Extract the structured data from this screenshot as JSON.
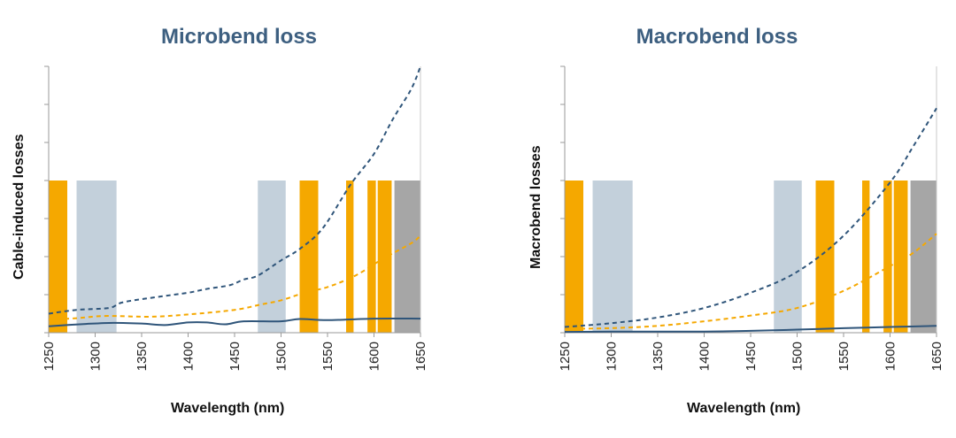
{
  "chart_data": [
    {
      "type": "line",
      "title": "Microbend loss",
      "xlabel": "Wavelength (nm)",
      "ylabel": "Cable-induced losses",
      "xlim": [
        1250,
        1650
      ],
      "ylim": [
        0,
        7
      ],
      "xticks": [
        "1250",
        "1300",
        "1350",
        "1400",
        "1450",
        "1500",
        "1550",
        "1600",
        "1650"
      ],
      "bands": [
        {
          "x0": 1250,
          "x1": 1270,
          "top": 4,
          "color": "#f5a800"
        },
        {
          "x0": 1280,
          "x1": 1323,
          "top": 4,
          "color": "#c3d0db"
        },
        {
          "x0": 1475,
          "x1": 1505,
          "top": 4,
          "color": "#c3d0db"
        },
        {
          "x0": 1520,
          "x1": 1540,
          "top": 4,
          "color": "#f5a800"
        },
        {
          "x0": 1570,
          "x1": 1578,
          "top": 4,
          "color": "#f5a800"
        },
        {
          "x0": 1593,
          "x1": 1602,
          "top": 4,
          "color": "#f5a800"
        },
        {
          "x0": 1604,
          "x1": 1619,
          "top": 4,
          "color": "#f5a800"
        },
        {
          "x0": 1622,
          "x1": 1650,
          "top": 4,
          "color": "#a6a6a6"
        }
      ],
      "series": [
        {
          "style": "dashed",
          "color": "#2f557a",
          "x": [
            1250,
            1280,
            1315,
            1330,
            1370,
            1400,
            1420,
            1445,
            1460,
            1475,
            1500,
            1520,
            1545,
            1575,
            1600,
            1620,
            1640,
            1650
          ],
          "y": [
            0.5,
            0.6,
            0.65,
            0.8,
            0.95,
            1.05,
            1.15,
            1.25,
            1.4,
            1.5,
            1.9,
            2.2,
            2.75,
            3.9,
            4.7,
            5.6,
            6.4,
            7.0
          ]
        },
        {
          "style": "dashed",
          "color": "#f5a800",
          "x": [
            1250,
            1280,
            1310,
            1360,
            1400,
            1450,
            1480,
            1500,
            1525,
            1550,
            1580,
            1610,
            1640,
            1650
          ],
          "y": [
            0.35,
            0.38,
            0.44,
            0.42,
            0.48,
            0.6,
            0.75,
            0.85,
            1.05,
            1.2,
            1.5,
            1.95,
            2.35,
            2.55
          ]
        },
        {
          "style": "solid",
          "color": "#2f557a",
          "x": [
            1250,
            1290,
            1320,
            1350,
            1375,
            1400,
            1420,
            1440,
            1460,
            1500,
            1520,
            1550,
            1600,
            1650
          ],
          "y": [
            0.17,
            0.23,
            0.26,
            0.24,
            0.2,
            0.27,
            0.27,
            0.22,
            0.3,
            0.3,
            0.36,
            0.33,
            0.37,
            0.37
          ]
        }
      ]
    },
    {
      "type": "line",
      "title": "Macrobend loss",
      "xlabel": "Wavelength (nm)",
      "ylabel": "Macrobend losses",
      "xlim": [
        1250,
        1650
      ],
      "ylim": [
        0,
        7
      ],
      "xticks": [
        "1250",
        "1300",
        "1350",
        "1400",
        "1450",
        "1500",
        "1550",
        "1600",
        "1650"
      ],
      "bands": [
        {
          "x0": 1250,
          "x1": 1270,
          "top": 4,
          "color": "#f5a800"
        },
        {
          "x0": 1280,
          "x1": 1323,
          "top": 4,
          "color": "#c3d0db"
        },
        {
          "x0": 1475,
          "x1": 1505,
          "top": 4,
          "color": "#c3d0db"
        },
        {
          "x0": 1520,
          "x1": 1540,
          "top": 4,
          "color": "#f5a800"
        },
        {
          "x0": 1570,
          "x1": 1578,
          "top": 4,
          "color": "#f5a800"
        },
        {
          "x0": 1593,
          "x1": 1602,
          "top": 4,
          "color": "#f5a800"
        },
        {
          "x0": 1604,
          "x1": 1619,
          "top": 4,
          "color": "#f5a800"
        },
        {
          "x0": 1622,
          "x1": 1650,
          "top": 4,
          "color": "#a6a6a6"
        }
      ],
      "series": [
        {
          "style": "dashed",
          "color": "#2f557a",
          "x": [
            1250,
            1300,
            1350,
            1400,
            1450,
            1500,
            1550,
            1600,
            1625,
            1650
          ],
          "y": [
            0.15,
            0.25,
            0.4,
            0.65,
            1.05,
            1.6,
            2.55,
            3.95,
            4.9,
            5.9
          ]
        },
        {
          "style": "dashed",
          "color": "#f5a800",
          "x": [
            1250,
            1300,
            1350,
            1400,
            1450,
            1500,
            1550,
            1600,
            1625,
            1650
          ],
          "y": [
            0.1,
            0.12,
            0.18,
            0.3,
            0.45,
            0.65,
            1.1,
            1.75,
            2.1,
            2.6
          ]
        },
        {
          "style": "solid",
          "color": "#2f557a",
          "x": [
            1250,
            1300,
            1400,
            1450,
            1500,
            1550,
            1600,
            1650
          ],
          "y": [
            0.02,
            0.03,
            0.03,
            0.05,
            0.08,
            0.12,
            0.15,
            0.18
          ]
        }
      ]
    }
  ]
}
